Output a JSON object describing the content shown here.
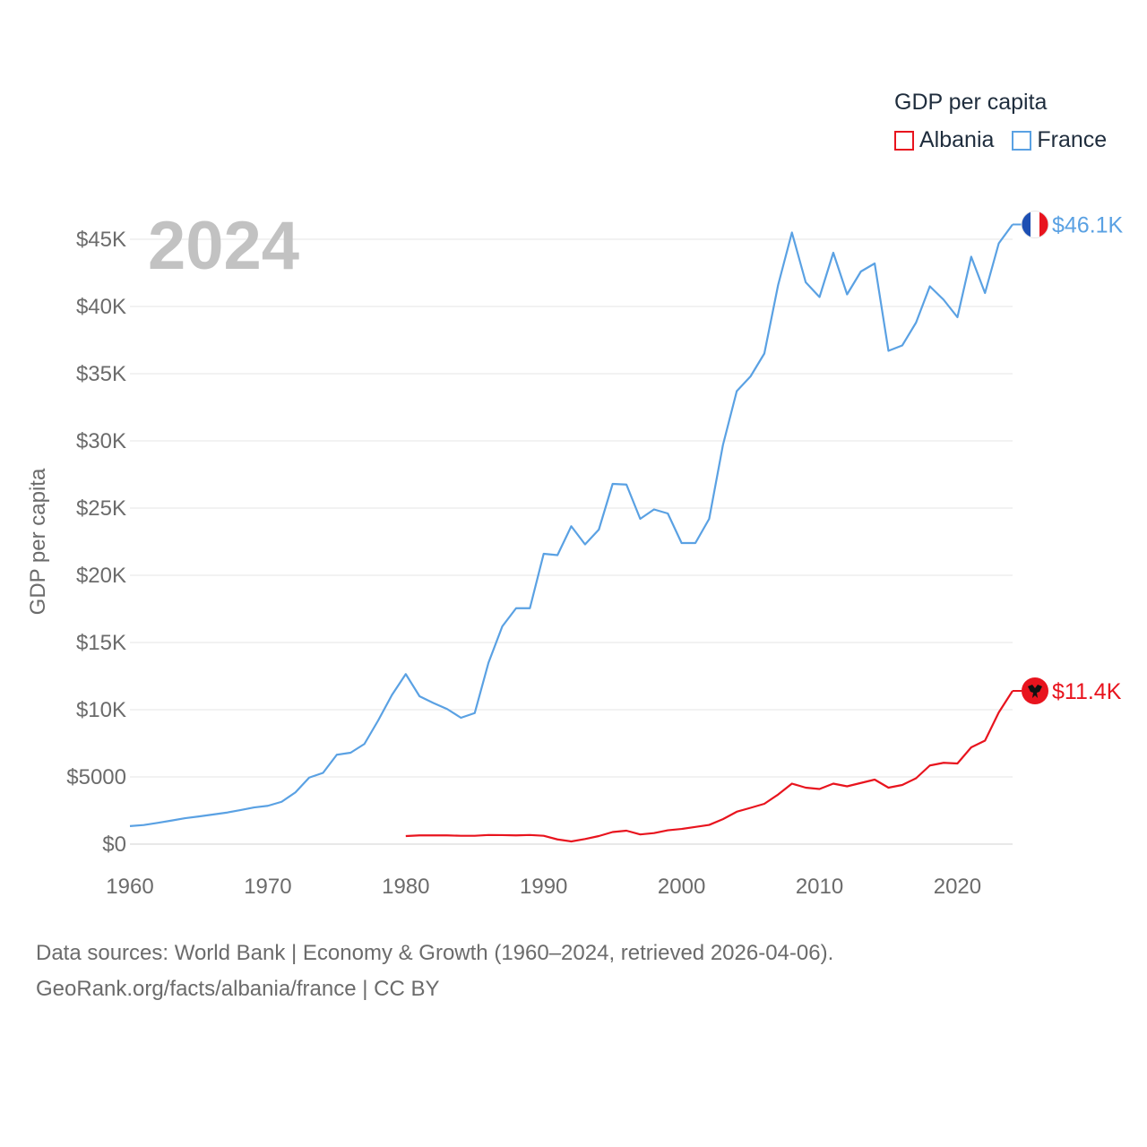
{
  "chart_data": {
    "type": "line",
    "title": "GDP per capita",
    "ylabel": "GDP per capita",
    "xlabel": "",
    "year_label": "2024",
    "xlim": [
      1960,
      2024
    ],
    "ylim": [
      0,
      47500
    ],
    "x_ticks": [
      1960,
      1970,
      1980,
      1990,
      2000,
      2010,
      2020
    ],
    "x_tick_labels": [
      "1960",
      "1970",
      "1980",
      "1990",
      "2000",
      "2010",
      "2020"
    ],
    "y_ticks": [
      0,
      5000,
      10000,
      15000,
      20000,
      25000,
      30000,
      35000,
      40000,
      45000
    ],
    "y_tick_labels": [
      "$0",
      "$5000",
      "$10K",
      "$15K",
      "$20K",
      "$25K",
      "$30K",
      "$35K",
      "$40K",
      "$45K"
    ],
    "grid": true,
    "legend": {
      "title": "GDP per capita",
      "position": "top-right",
      "entries": [
        "Albania",
        "France"
      ]
    },
    "series": [
      {
        "name": "Albania",
        "color": "#e8141e",
        "end_label": "$11.4K",
        "flag": "albania-flag",
        "x": [
          1980,
          1981,
          1982,
          1983,
          1984,
          1985,
          1986,
          1987,
          1988,
          1989,
          1990,
          1991,
          1992,
          1993,
          1994,
          1995,
          1996,
          1997,
          1998,
          1999,
          2000,
          2001,
          2002,
          2003,
          2004,
          2005,
          2006,
          2007,
          2008,
          2009,
          2010,
          2011,
          2012,
          2013,
          2014,
          2015,
          2016,
          2017,
          2018,
          2019,
          2020,
          2021,
          2022,
          2023,
          2024
        ],
        "values": [
          600,
          650,
          650,
          650,
          620,
          620,
          680,
          670,
          650,
          680,
          620,
          350,
          200,
          380,
          600,
          900,
          1000,
          720,
          820,
          1030,
          1130,
          1280,
          1430,
          1860,
          2410,
          2700,
          3000,
          3690,
          4500,
          4200,
          4100,
          4500,
          4300,
          4550,
          4800,
          4200,
          4400,
          4900,
          5850,
          6050,
          6000,
          7200,
          7700,
          9800,
          11400
        ]
      },
      {
        "name": "France",
        "color": "#5aa1e3",
        "end_label": "$46.1K",
        "flag": "france-flag",
        "x": [
          1960,
          1961,
          1962,
          1963,
          1964,
          1965,
          1966,
          1967,
          1968,
          1969,
          1970,
          1971,
          1972,
          1973,
          1974,
          1975,
          1976,
          1977,
          1978,
          1979,
          1980,
          1981,
          1982,
          1983,
          1984,
          1985,
          1986,
          1987,
          1988,
          1989,
          1990,
          1991,
          1992,
          1993,
          1994,
          1995,
          1996,
          1997,
          1998,
          1999,
          2000,
          2001,
          2002,
          2003,
          2004,
          2005,
          2006,
          2007,
          2008,
          2009,
          2010,
          2011,
          2012,
          2013,
          2014,
          2015,
          2016,
          2017,
          2018,
          2019,
          2020,
          2021,
          2022,
          2023,
          2024
        ],
        "values": [
          1340,
          1420,
          1580,
          1750,
          1930,
          2060,
          2200,
          2340,
          2530,
          2730,
          2850,
          3150,
          3850,
          4950,
          5300,
          6650,
          6800,
          7450,
          9200,
          11100,
          12650,
          11000,
          10500,
          10050,
          9400,
          9750,
          13500,
          16200,
          17550,
          17550,
          21600,
          21500,
          23650,
          22300,
          23400,
          26800,
          26750,
          24200,
          24900,
          24600,
          22400,
          22400,
          24200,
          29700,
          33700,
          34800,
          36500,
          41600,
          45500,
          41800,
          40700,
          44000,
          40900,
          42600,
          43200,
          36700,
          37100,
          38800,
          41500,
          40500,
          39200,
          43700,
          41000,
          44700,
          46100
        ]
      }
    ]
  },
  "source": {
    "line1": "Data sources: World Bank | Economy & Growth (1960–2024, retrieved 2026-04-06).",
    "line2": "GeoRank.org/facts/albania/france | CC BY"
  }
}
